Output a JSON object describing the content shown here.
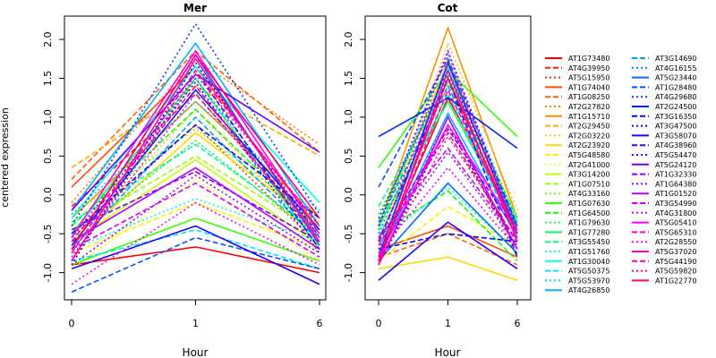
{
  "chart_data": {
    "type": "line",
    "ylabel": "centered expression",
    "xlabel": "Hour",
    "x_ticks": [
      "0",
      "1",
      "6"
    ],
    "ylim": [
      -1.35,
      2.3
    ],
    "y_ticks": [
      "-1.0",
      "-0.5",
      "0.0",
      "0.5",
      "1.0",
      "1.5",
      "2.0"
    ],
    "grid": false,
    "legend_position": "right",
    "legend": [
      {
        "name": "AT1G73480",
        "color": "#ff0000",
        "dash": "solid"
      },
      {
        "name": "AT4G39950",
        "color": "#ff1800",
        "dash": "dashed"
      },
      {
        "name": "AT5G15950",
        "color": "#ff3000",
        "dash": "dotted"
      },
      {
        "name": "AT1G74040",
        "color": "#ff4800",
        "dash": "solid"
      },
      {
        "name": "AT1G08250",
        "color": "#ff6000",
        "dash": "dashed"
      },
      {
        "name": "AT2G27820",
        "color": "#ff7800",
        "dash": "dotted"
      },
      {
        "name": "AT1G15710",
        "color": "#ff9000",
        "dash": "solid"
      },
      {
        "name": "AT2G29450",
        "color": "#ffa800",
        "dash": "dashed"
      },
      {
        "name": "AT2G03220",
        "color": "#ffc000",
        "dash": "dotted"
      },
      {
        "name": "AT2G23920",
        "color": "#ffd800",
        "dash": "solid"
      },
      {
        "name": "AT5G48580",
        "color": "#fff000",
        "dash": "dashed"
      },
      {
        "name": "AT2G41000",
        "color": "#f6ff00",
        "dash": "dotted"
      },
      {
        "name": "AT3G14200",
        "color": "#c6ff00",
        "dash": "solid"
      },
      {
        "name": "AT1G07510",
        "color": "#96ff00",
        "dash": "dashed"
      },
      {
        "name": "AT4G33160",
        "color": "#66ff00",
        "dash": "dotted"
      },
      {
        "name": "AT1G07630",
        "color": "#36ff00",
        "dash": "solid"
      },
      {
        "name": "AT1G64500",
        "color": "#06ff00",
        "dash": "dashed"
      },
      {
        "name": "AT1G79630",
        "color": "#00ff2a",
        "dash": "dotted"
      },
      {
        "name": "AT1G77280",
        "color": "#00ff5a",
        "dash": "solid"
      },
      {
        "name": "AT3G55450",
        "color": "#00ff8a",
        "dash": "dashed"
      },
      {
        "name": "AT1G51760",
        "color": "#00ffba",
        "dash": "dotted"
      },
      {
        "name": "AT1G30040",
        "color": "#00ffea",
        "dash": "solid"
      },
      {
        "name": "AT5G50375",
        "color": "#00e4ff",
        "dash": "dashed"
      },
      {
        "name": "AT5G53970",
        "color": "#00ccff",
        "dash": "dotted"
      },
      {
        "name": "AT4G26850",
        "color": "#00b4ff",
        "dash": "solid"
      },
      {
        "name": "AT3G14690",
        "color": "#009cff",
        "dash": "dashed"
      },
      {
        "name": "AT4G16155",
        "color": "#0084ff",
        "dash": "dotted"
      },
      {
        "name": "AT5G23440",
        "color": "#006cff",
        "dash": "solid"
      },
      {
        "name": "AT1G28480",
        "color": "#0054ff",
        "dash": "dashed"
      },
      {
        "name": "AT4G29680",
        "color": "#003cff",
        "dash": "dotted"
      },
      {
        "name": "AT2G24500",
        "color": "#0024ff",
        "dash": "solid"
      },
      {
        "name": "AT3G16350",
        "color": "#000cff",
        "dash": "dashed"
      },
      {
        "name": "AT3G47500",
        "color": "#0c00ff",
        "dash": "dotted"
      },
      {
        "name": "AT3G58070",
        "color": "#2400ff",
        "dash": "solid"
      },
      {
        "name": "AT4G38960",
        "color": "#3c00ff",
        "dash": "dashed"
      },
      {
        "name": "AT5G54470",
        "color": "#5400ff",
        "dash": "dotted"
      },
      {
        "name": "AT5G24120",
        "color": "#6c00ff",
        "dash": "solid"
      },
      {
        "name": "AT1G32330",
        "color": "#8400ff",
        "dash": "dashed"
      },
      {
        "name": "AT1G64380",
        "color": "#9c00ff",
        "dash": "dotted"
      },
      {
        "name": "AT1G01520",
        "color": "#b400ff",
        "dash": "solid"
      },
      {
        "name": "AT3G54990",
        "color": "#cc00ff",
        "dash": "dashed"
      },
      {
        "name": "AT4G31800",
        "color": "#e400ff",
        "dash": "dotted"
      },
      {
        "name": "AT5G05410",
        "color": "#ff00fc",
        "dash": "solid"
      },
      {
        "name": "AT5G65310",
        "color": "#ff00e4",
        "dash": "dashed"
      },
      {
        "name": "AT2G28550",
        "color": "#ff00cc",
        "dash": "dotted"
      },
      {
        "name": "AT5G37020",
        "color": "#ff00b4",
        "dash": "solid"
      },
      {
        "name": "AT5G44190",
        "color": "#ff009c",
        "dash": "dashed"
      },
      {
        "name": "AT5G59820",
        "color": "#ff0084",
        "dash": "dotted"
      },
      {
        "name": "AT1G22770",
        "color": "#ff006c",
        "dash": "solid"
      }
    ],
    "panels": [
      {
        "title": "Mer",
        "series": [
          [
            -0.9,
            -0.67,
            -1.0
          ],
          [
            -0.15,
            1.3,
            -0.5
          ],
          [
            -0.55,
            0.9,
            -0.65
          ],
          [
            0.1,
            1.65,
            -0.45
          ],
          [
            0.2,
            1.85,
            0.55
          ],
          [
            -0.1,
            1.75,
            0.65
          ],
          [
            -0.3,
            1.2,
            -0.3
          ],
          [
            0.35,
            1.4,
            0.5
          ],
          [
            -0.6,
            1.1,
            -0.55
          ],
          [
            -0.65,
            0.8,
            -0.4
          ],
          [
            -0.75,
            -0.1,
            -0.7
          ],
          [
            -0.95,
            0.2,
            -0.85
          ],
          [
            -0.6,
            0.45,
            -0.65
          ],
          [
            -0.45,
            0.5,
            -0.5
          ],
          [
            -0.25,
            0.85,
            -0.35
          ],
          [
            -0.9,
            -0.3,
            -0.85
          ],
          [
            -0.4,
            1.1,
            -0.45
          ],
          [
            -0.55,
            0.7,
            -0.55
          ],
          [
            -0.5,
            1.5,
            -0.7
          ],
          [
            -0.35,
            0.65,
            -0.5
          ],
          [
            -0.7,
            -0.05,
            -0.6
          ],
          [
            -0.3,
            1.65,
            -0.1
          ],
          [
            -0.85,
            -0.45,
            -0.95
          ],
          [
            -0.25,
            1.2,
            -0.2
          ],
          [
            -0.2,
            1.95,
            -0.4
          ],
          [
            -0.7,
            1.0,
            -0.6
          ],
          [
            -0.85,
            1.5,
            -0.55
          ],
          [
            -0.7,
            1.8,
            -0.65
          ],
          [
            -1.25,
            -0.55,
            -0.95
          ],
          [
            -0.4,
            2.2,
            -0.25
          ],
          [
            -0.65,
            1.35,
            -0.45
          ],
          [
            -0.5,
            0.9,
            -0.3
          ],
          [
            -0.9,
            1.7,
            -0.55
          ],
          [
            -0.95,
            -0.4,
            -1.15
          ],
          [
            -0.75,
            1.6,
            -0.7
          ],
          [
            -0.55,
            1.45,
            -0.75
          ],
          [
            -0.2,
            1.55,
            0.55
          ],
          [
            -0.45,
            0.3,
            -0.6
          ],
          [
            -0.9,
            0.25,
            -0.75
          ],
          [
            -0.6,
            0.35,
            -0.7
          ],
          [
            -0.7,
            0.15,
            -0.8
          ],
          [
            -0.8,
            1.3,
            -0.55
          ],
          [
            -0.55,
            1.85,
            -0.5
          ],
          [
            -0.75,
            1.6,
            -0.4
          ],
          [
            -1.15,
            -0.1,
            -0.9
          ],
          [
            -0.85,
            1.75,
            -0.6
          ],
          [
            -0.6,
            1.4,
            -0.6
          ],
          [
            -0.85,
            1.55,
            -0.4
          ],
          [
            -0.7,
            1.8,
            -0.3
          ]
        ]
      },
      {
        "title": "Cot",
        "series": [
          [
            -0.8,
            1.25,
            -0.4
          ],
          [
            -0.6,
            1.5,
            -0.55
          ],
          [
            -0.75,
            1.0,
            -0.8
          ],
          [
            -0.7,
            -0.4,
            -0.8
          ],
          [
            -0.8,
            -0.5,
            -0.9
          ],
          [
            -0.55,
            1.4,
            -0.35
          ],
          [
            -0.4,
            2.15,
            -0.3
          ],
          [
            -0.85,
            1.75,
            -0.55
          ],
          [
            -0.6,
            1.95,
            -0.2
          ],
          [
            -0.95,
            -0.8,
            -1.1
          ],
          [
            -0.85,
            -0.15,
            -0.65
          ],
          [
            -0.55,
            1.55,
            -0.3
          ],
          [
            -0.35,
            1.6,
            -0.3
          ],
          [
            -0.45,
            1.7,
            -0.5
          ],
          [
            -0.7,
            1.35,
            -0.45
          ],
          [
            0.35,
            1.6,
            0.75
          ],
          [
            -0.5,
            0.05,
            -0.85
          ],
          [
            -0.25,
            1.5,
            -0.35
          ],
          [
            -0.4,
            1.2,
            -0.45
          ],
          [
            -0.15,
            1.45,
            -0.3
          ],
          [
            -0.6,
            0.1,
            -0.75
          ],
          [
            -0.75,
            1.65,
            -0.45
          ],
          [
            -0.55,
            1.3,
            -0.55
          ],
          [
            -0.45,
            1.8,
            -0.35
          ],
          [
            -0.8,
            1.05,
            -0.55
          ],
          [
            -0.35,
            1.4,
            -0.45
          ],
          [
            -0.5,
            1.55,
            -0.55
          ],
          [
            -0.85,
            0.15,
            -0.75
          ],
          [
            0.1,
            1.75,
            -0.4
          ],
          [
            -0.3,
            1.6,
            -0.4
          ],
          [
            0.75,
            1.25,
            0.6
          ],
          [
            -0.7,
            -0.5,
            -0.6
          ],
          [
            -0.9,
            0.9,
            -0.7
          ],
          [
            -1.1,
            -0.35,
            -0.95
          ],
          [
            -0.6,
            1.5,
            -0.8
          ],
          [
            -0.4,
            1.85,
            -0.45
          ],
          [
            -0.8,
            1.7,
            -0.5
          ],
          [
            -0.6,
            0.85,
            -0.5
          ],
          [
            -0.7,
            0.55,
            -0.65
          ],
          [
            -0.9,
            1.0,
            -0.7
          ],
          [
            -0.55,
            0.6,
            -0.6
          ],
          [
            -0.75,
            0.35,
            -0.7
          ],
          [
            -0.8,
            0.9,
            -0.45
          ],
          [
            -0.85,
            1.35,
            -0.5
          ],
          [
            -0.7,
            1.85,
            -0.55
          ],
          [
            -0.9,
            1.6,
            -0.6
          ],
          [
            -0.65,
            0.8,
            -0.6
          ],
          [
            -0.9,
            0.75,
            -0.6
          ],
          [
            -0.85,
            1.5,
            -0.5
          ]
        ]
      }
    ]
  }
}
